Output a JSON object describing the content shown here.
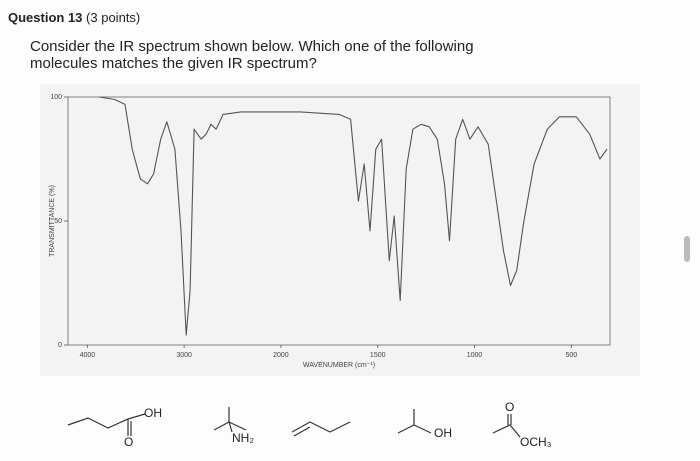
{
  "header": {
    "title": "Question 13",
    "points": "(3 points)"
  },
  "question": "Consider the IR spectrum shown below. Which one of the following molecules matches the given IR spectrum?",
  "chart_data": {
    "type": "line",
    "x_label": "WAVENUMBER (cm⁻¹)",
    "y_label": "TRANSMITTANCE (%)",
    "color": "#555555",
    "xlim": [
      4200,
      300
    ],
    "xticks": [
      4000,
      3000,
      2000,
      1500,
      1000,
      500
    ],
    "ylim": [
      0,
      100
    ],
    "yticks": [
      0,
      50,
      100
    ],
    "x": [
      3875,
      3716,
      3611,
      3537,
      3453,
      3379,
      3316,
      3242,
      3179,
      3095,
      3032,
      2979,
      2938,
      2897,
      2825,
      2773,
      2722,
      2670,
      2598,
      2412,
      1900,
      1700,
      1640,
      1600,
      1570,
      1540,
      1510,
      1480,
      1440,
      1415,
      1384,
      1353,
      1318,
      1276,
      1234,
      1192,
      1155,
      1129,
      1097,
      1061,
      1024,
      982,
      929,
      887,
      850,
      814,
      782,
      745,
      692,
      624,
      561,
      474,
      405,
      352,
      315
    ],
    "values": [
      100,
      99,
      97,
      79,
      67,
      65,
      69,
      83,
      90,
      79,
      46,
      4,
      22,
      87,
      83,
      85,
      89,
      87,
      93,
      94,
      94,
      93,
      91,
      58,
      73,
      46,
      79,
      83,
      34,
      52,
      18,
      71,
      87,
      89,
      88,
      83,
      65,
      42,
      83,
      91,
      83,
      88,
      81,
      58,
      38,
      24,
      30,
      50,
      73,
      87,
      92,
      92,
      85,
      75,
      79
    ]
  },
  "answers": [
    {
      "hydroxyl": "OH",
      "carbonyl": "O"
    },
    {
      "group": "NH₂"
    },
    {},
    {
      "group": "OH"
    },
    {
      "carbonyl": "O",
      "ester": "OCH₃"
    }
  ]
}
